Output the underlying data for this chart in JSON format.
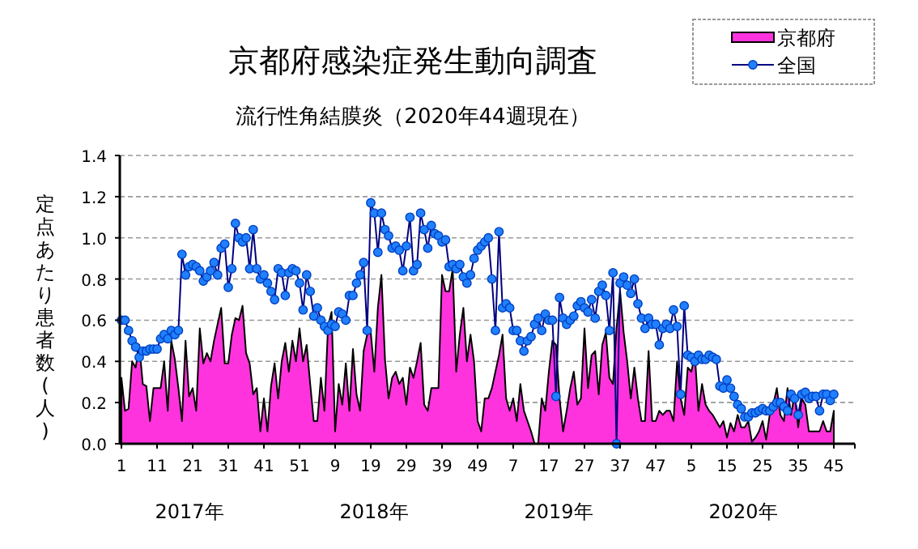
{
  "chart_data": {
    "type": "line",
    "title": "京都府感染症発生動向調査",
    "subtitle": "流行性角結膜炎（2020年44週現在）",
    "ylabel": "定点あたり患者数(人)",
    "categories": [
      "1",
      null,
      null,
      null,
      null,
      null,
      null,
      null,
      null,
      null,
      "11",
      null,
      null,
      null,
      null,
      null,
      null,
      null,
      null,
      null,
      "21",
      null,
      null,
      null,
      null,
      null,
      null,
      null,
      null,
      null,
      "31",
      null,
      null,
      null,
      null,
      null,
      null,
      null,
      null,
      null,
      "41",
      null,
      null,
      null,
      null,
      null,
      null,
      null,
      null,
      null,
      "51",
      null,
      null,
      null,
      null,
      null,
      null,
      null,
      null,
      null,
      "9",
      null,
      null,
      null,
      null,
      null,
      null,
      null,
      null,
      null,
      "19",
      null,
      null,
      null,
      null,
      null,
      null,
      null,
      null,
      null,
      "29",
      null,
      null,
      null,
      null,
      null,
      null,
      null,
      null,
      null,
      "39",
      null,
      null,
      null,
      null,
      null,
      null,
      null,
      null,
      null,
      "49",
      null,
      null,
      null,
      null,
      null,
      null,
      null,
      null,
      null,
      "7",
      null,
      null,
      null,
      null,
      null,
      null,
      null,
      null,
      null,
      "17",
      null,
      null,
      null,
      null,
      null,
      null,
      null,
      null,
      null,
      "27",
      null,
      null,
      null,
      null,
      null,
      null,
      null,
      null,
      null,
      "37",
      null,
      null,
      null,
      null,
      null,
      null,
      null,
      null,
      null,
      "47",
      null,
      null,
      null,
      null,
      null,
      null,
      null,
      null,
      null,
      "5",
      null,
      null,
      null,
      null,
      null,
      null,
      null,
      null,
      null,
      "15",
      null,
      null,
      null,
      null,
      null,
      null,
      null,
      null,
      null,
      "25",
      null,
      null,
      null,
      null,
      null,
      null,
      null,
      null,
      null,
      "35",
      null,
      null,
      null,
      null,
      null,
      null,
      null,
      null,
      null,
      "45"
    ],
    "series": [
      {
        "name": "京都府",
        "type": "area",
        "color": "#ff33dd",
        "values": [
          0.32,
          0.16,
          0.17,
          0.4,
          0.37,
          0.48,
          0.29,
          0.28,
          0.11,
          0.27,
          0.27,
          0.27,
          0.4,
          0.16,
          0.5,
          0.41,
          0.27,
          0.11,
          0.5,
          0.23,
          0.27,
          0.16,
          0.56,
          0.39,
          0.44,
          0.4,
          0.5,
          0.58,
          0.66,
          0.39,
          0.39,
          0.53,
          0.61,
          0.6,
          0.67,
          0.44,
          0.39,
          0.24,
          0.27,
          0.06,
          0.22,
          0.06,
          0.28,
          0.39,
          0.22,
          0.4,
          0.49,
          0.35,
          0.5,
          0.4,
          0.56,
          0.4,
          0.48,
          0.29,
          0.11,
          0.11,
          0.32,
          0.16,
          0.57,
          0.64,
          0.06,
          0.29,
          0.19,
          0.39,
          0.16,
          0.46,
          0.24,
          0.16,
          0.45,
          0.53,
          0.54,
          0.35,
          0.66,
          0.82,
          0.41,
          0.22,
          0.32,
          0.35,
          0.29,
          0.32,
          0.19,
          0.37,
          0.32,
          0.4,
          0.49,
          0.19,
          0.16,
          0.27,
          0.27,
          0.27,
          0.82,
          0.74,
          0.74,
          0.85,
          0.35,
          0.53,
          0.66,
          0.4,
          0.53,
          0.4,
          0.11,
          0.06,
          0.22,
          0.22,
          0.27,
          0.35,
          0.43,
          0.53,
          0.22,
          0.16,
          0.22,
          0.11,
          0.29,
          0.16,
          0.11,
          0.06,
          0,
          0,
          0.22,
          0.16,
          0.35,
          0.5,
          0.48,
          0.22,
          0.06,
          0.16,
          0.27,
          0.35,
          0.19,
          0.22,
          0.56,
          0.27,
          0.43,
          0.45,
          0.24,
          0.48,
          0.54,
          0.32,
          0.29,
          0.56,
          0.74,
          0.54,
          0.4,
          0.22,
          0.37,
          0.22,
          0.11,
          0.11,
          0.45,
          0.11,
          0.11,
          0.16,
          0.14,
          0.16,
          0.16,
          0.11,
          0.4,
          0.22,
          0.14,
          0.37,
          0.35,
          0.43,
          0.16,
          0.29,
          0.19,
          0.16,
          0.14,
          0.11,
          0.08,
          0.11,
          0.03,
          0.1,
          0.06,
          0.14,
          0.08,
          0.08,
          0.11,
          0.01,
          0.03,
          0.06,
          0.11,
          0.02,
          0.14,
          0.19,
          0.27,
          0.14,
          0.11,
          0.27,
          0.14,
          0.24,
          0.08,
          0.22,
          0.19,
          0.06,
          0.06,
          0.06,
          0.06,
          0.11,
          0.06,
          0.06,
          0.16
        ]
      },
      {
        "name": "全国",
        "type": "line",
        "color": "#2080ff",
        "marker": "circle",
        "values": [
          0.6,
          0.6,
          0.55,
          0.5,
          0.47,
          0.42,
          0.45,
          0.45,
          0.46,
          0.46,
          0.46,
          0.51,
          0.53,
          0.51,
          0.55,
          0.53,
          0.55,
          0.92,
          0.82,
          0.86,
          0.87,
          0.86,
          0.84,
          0.79,
          0.81,
          0.84,
          0.88,
          0.82,
          0.95,
          0.97,
          0.76,
          0.85,
          1.07,
          1.0,
          0.98,
          1.0,
          0.85,
          1.04,
          0.85,
          0.8,
          0.82,
          0.78,
          0.74,
          0.7,
          0.85,
          0.83,
          0.72,
          0.83,
          0.85,
          0.84,
          0.78,
          0.65,
          0.82,
          0.74,
          0.62,
          0.66,
          0.6,
          0.57,
          0.55,
          0.58,
          0.57,
          0.64,
          0.63,
          0.6,
          0.72,
          0.72,
          0.78,
          0.82,
          0.88,
          0.55,
          1.17,
          1.12,
          0.93,
          1.12,
          1.04,
          1.01,
          0.95,
          0.96,
          0.94,
          0.84,
          0.96,
          1.1,
          0.84,
          0.87,
          1.12,
          1.04,
          0.95,
          1.06,
          1.02,
          1.01,
          0.98,
          0.99,
          0.86,
          0.87,
          0.85,
          0.87,
          0.81,
          0.78,
          0.82,
          0.9,
          0.94,
          0.96,
          0.98,
          1.0,
          0.8,
          0.55,
          1.03,
          0.66,
          0.68,
          0.66,
          0.55,
          0.55,
          0.5,
          0.45,
          0.5,
          0.52,
          0.58,
          0.61,
          0.55,
          0.63,
          0.6,
          0.6,
          0.23,
          0.71,
          0.61,
          0.58,
          0.6,
          0.62,
          0.67,
          0.69,
          0.66,
          0.64,
          0.7,
          0.61,
          0.74,
          0.77,
          0.72,
          0.55,
          0.83,
          0.0,
          0.78,
          0.81,
          0.77,
          0.73,
          0.8,
          0.68,
          0.61,
          0.56,
          0.61,
          0.58,
          0.58,
          0.48,
          0.56,
          0.58,
          0.56,
          0.65,
          0.57,
          0.24,
          0.67,
          0.43,
          0.42,
          0.4,
          0.43,
          0.41,
          0.41,
          0.43,
          0.42,
          0.41,
          0.28,
          0.27,
          0.31,
          0.27,
          0.23,
          0.19,
          0.17,
          0.13,
          0.13,
          0.15,
          0.15,
          0.16,
          0.17,
          0.16,
          0.16,
          0.18,
          0.2,
          0.2,
          0.18,
          0.16,
          0.24,
          0.22,
          0.14,
          0.24,
          0.25,
          0.22,
          0.23,
          0.23,
          0.16,
          0.24,
          0.24,
          0.21,
          0.24
        ]
      }
    ],
    "ylim": [
      0,
      1.4
    ],
    "yticks": [
      {
        "value": 0,
        "label": "0.0"
      },
      {
        "value": 0.2,
        "label": "0.2"
      },
      {
        "value": 0.4,
        "label": "0.4"
      },
      {
        "value": 0.6,
        "label": "0.6"
      },
      {
        "value": 0.8,
        "label": "0.8"
      },
      {
        "value": 1.0,
        "label": "1.0"
      },
      {
        "value": 1.2,
        "label": "1.2"
      },
      {
        "value": 1.4,
        "label": "1.4"
      }
    ],
    "grid": "y",
    "legend": "top right",
    "annotations": [
      "2017年",
      "2018年",
      "2019年",
      "2020年"
    ]
  }
}
